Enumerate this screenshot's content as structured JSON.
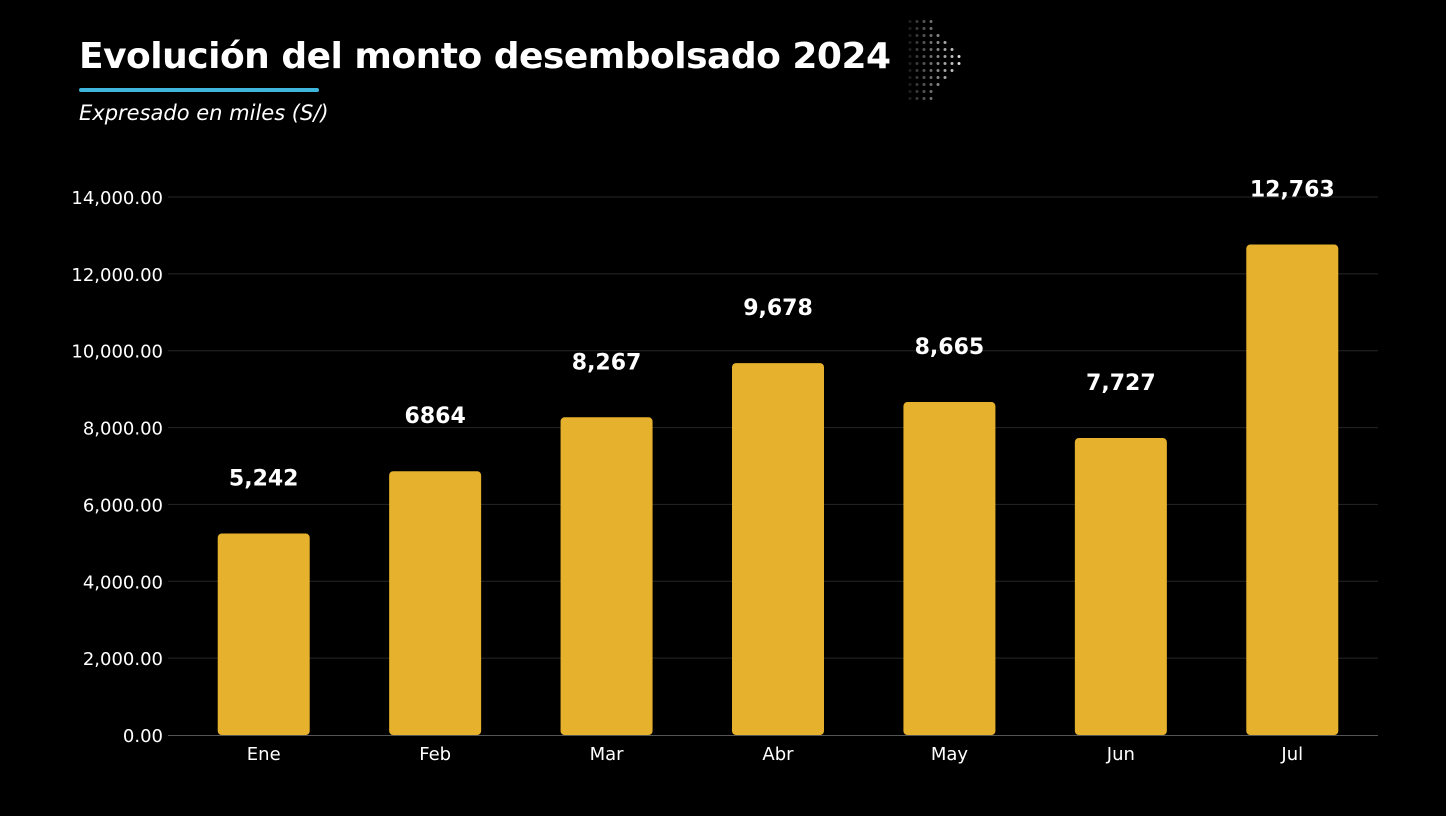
{
  "header": {
    "title": "Evolución del monto desembolsado 2024",
    "subtitle": "Expresado en miles (S/)"
  },
  "decor": {
    "chevron_icon": "dotted-chevron-right-icon"
  },
  "colors": {
    "bar": "#E6B12C",
    "accent": "#3FB6DC",
    "background": "#000000",
    "text": "#FFFFFF"
  },
  "chart_data": {
    "type": "bar",
    "title": "Evolución del monto desembolsado 2024",
    "subtitle": "Expresado en miles (S/)",
    "categories": [
      "Ene",
      "Feb",
      "Mar",
      "Abr",
      "May",
      "Jun",
      "Jul"
    ],
    "values": [
      5242,
      6864,
      8267,
      9678,
      8665,
      7727,
      12763
    ],
    "data_labels": [
      "5,242",
      "6864",
      "8,267",
      "9,678",
      "8,665",
      "7,727",
      "12,763"
    ],
    "ylim": [
      0,
      14000
    ],
    "yticks": [
      0,
      2000,
      4000,
      6000,
      8000,
      10000,
      12000,
      14000
    ],
    "ytick_labels": [
      "0.00",
      "2,000.00",
      "4,000.00",
      "6,000.00",
      "8,000.00",
      "10,000.00",
      "12,000.00",
      "14,000.00"
    ],
    "xlabel": "",
    "ylabel": "",
    "grid": true,
    "legend": "none"
  }
}
